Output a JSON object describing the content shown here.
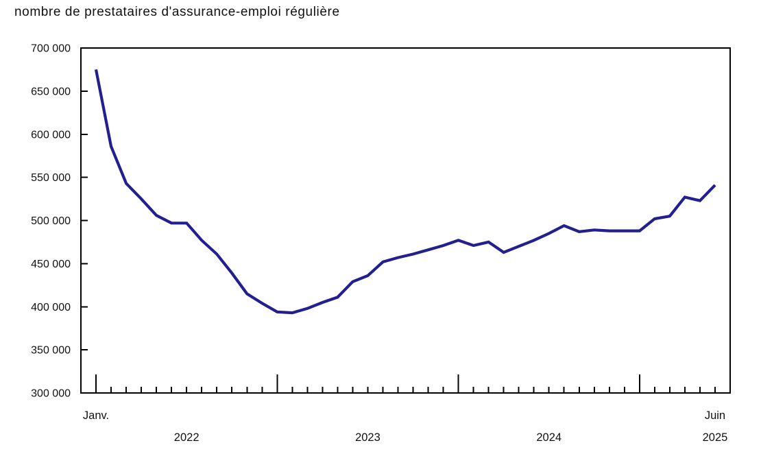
{
  "chart_data": {
    "type": "line",
    "title": "nombre de prestataires d'assurance-emploi régulière",
    "series_name": "prestataires d'assurance-emploi régulière",
    "x": [
      "2022-01",
      "2022-02",
      "2022-03",
      "2022-04",
      "2022-05",
      "2022-06",
      "2022-07",
      "2022-08",
      "2022-09",
      "2022-10",
      "2022-11",
      "2022-12",
      "2023-01",
      "2023-02",
      "2023-03",
      "2023-04",
      "2023-05",
      "2023-06",
      "2023-07",
      "2023-08",
      "2023-09",
      "2023-10",
      "2023-11",
      "2023-12",
      "2024-01",
      "2024-02",
      "2024-03",
      "2024-04",
      "2024-05",
      "2024-06",
      "2024-07",
      "2024-08",
      "2024-09",
      "2024-10",
      "2024-11",
      "2024-12",
      "2025-01",
      "2025-02",
      "2025-03",
      "2025-04",
      "2025-05",
      "2025-06"
    ],
    "values": [
      675000,
      586000,
      543000,
      525000,
      506000,
      497000,
      497000,
      477000,
      461000,
      439000,
      415000,
      404000,
      394000,
      393000,
      398000,
      405000,
      411000,
      429000,
      436000,
      452000,
      457000,
      461000,
      466000,
      471000,
      477000,
      471000,
      475000,
      463000,
      470000,
      477000,
      485000,
      494000,
      487000,
      489000,
      488000,
      488000,
      488000,
      502000,
      505000,
      527000,
      523000,
      541000
    ],
    "xlabel": "",
    "ylabel": "",
    "ylim": [
      300000,
      700000
    ],
    "ytick_interval": 50000,
    "ytick_labels": [
      "300 000",
      "350 000",
      "400 000",
      "450 000",
      "500 000",
      "550 000",
      "600 000",
      "650 000",
      "700 000"
    ],
    "x_axis": {
      "first_tick_label": "Janv.",
      "last_tick_label": "Juin",
      "year_labels": [
        "2022",
        "2023",
        "2024",
        "2025"
      ]
    },
    "grid": false,
    "legend": "none",
    "line_color": "#221f8e",
    "axis_color": "#000000"
  }
}
